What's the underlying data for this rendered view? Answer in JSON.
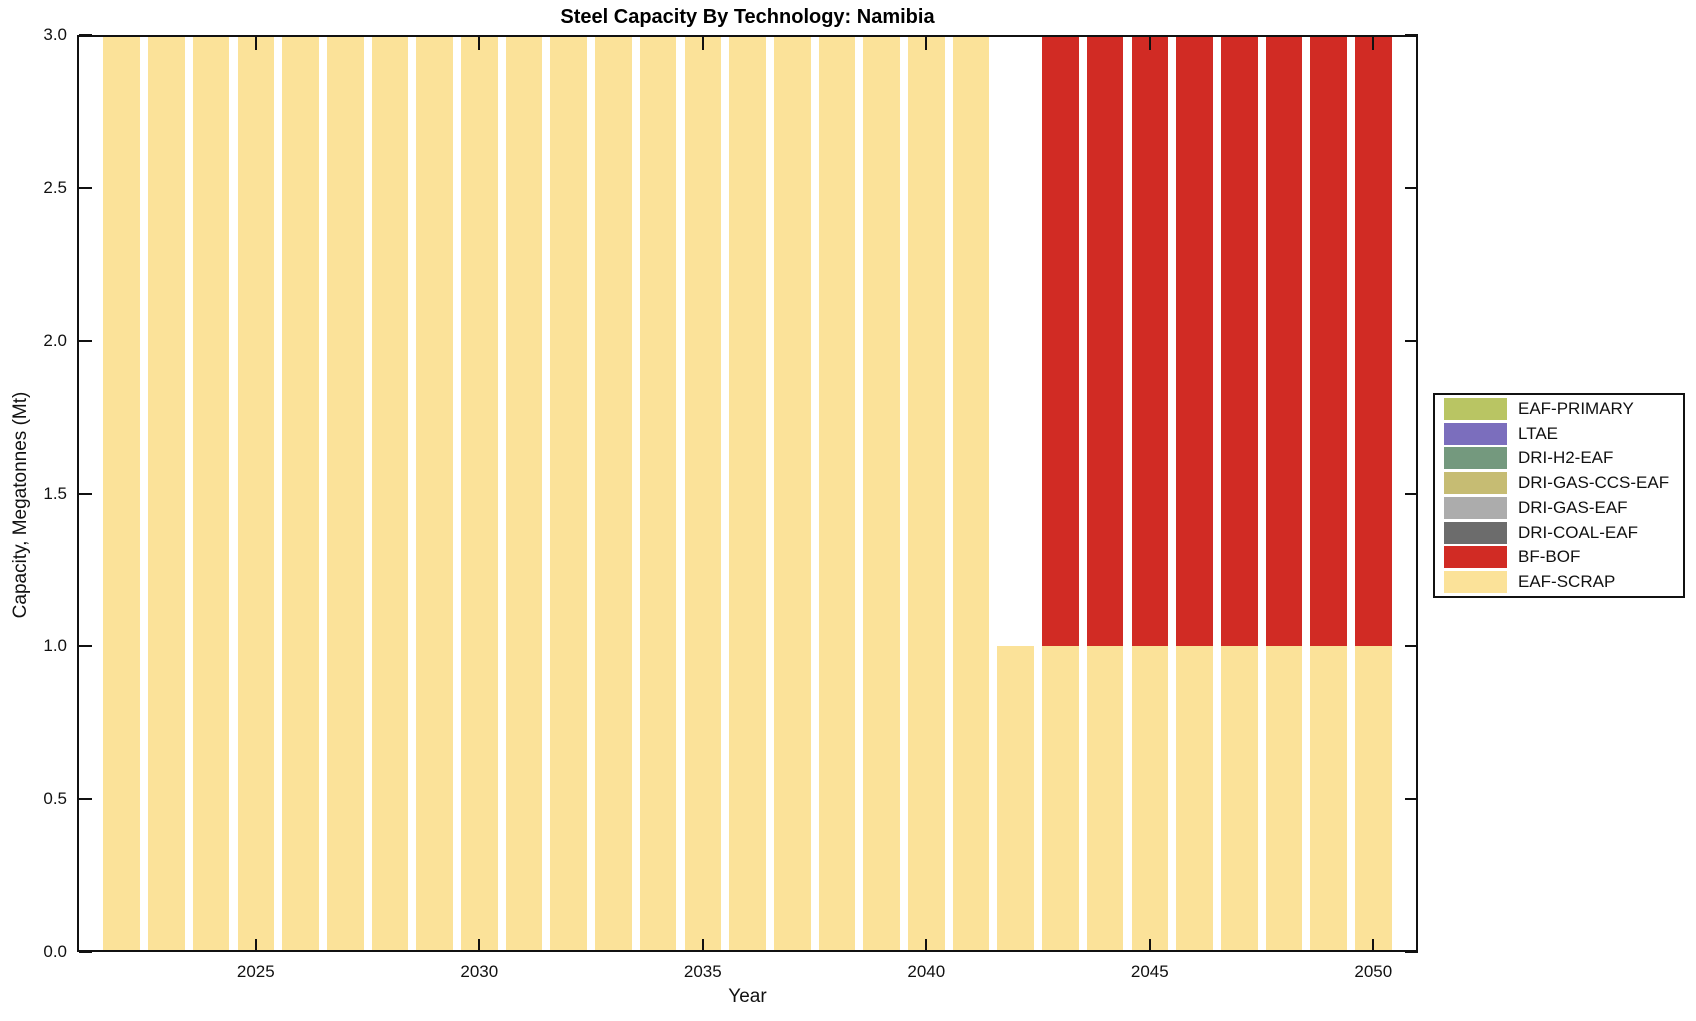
{
  "chart_data": {
    "type": "bar",
    "stacked": true,
    "title": "Steel Capacity By Technology: Namibia",
    "xlabel": "Year",
    "ylabel": "Capacity, Megatonnes (Mt)",
    "xlim": [
      2021,
      2051
    ],
    "ylim": [
      0,
      3
    ],
    "grid": false,
    "legend_position": "outside-right",
    "axis_color": "#111111",
    "background_color": "#FFFFFF",
    "bar_width_years": 0.82,
    "x_ticks": [
      2025,
      2030,
      2035,
      2040,
      2045,
      2050
    ],
    "x_tick_labels": [
      "2025",
      "2030",
      "2035",
      "2040",
      "2045",
      "2050"
    ],
    "y_ticks": [
      0,
      0.5,
      1,
      1.5,
      2,
      2.5,
      3
    ],
    "y_tick_labels": [
      "0.0",
      "0.5",
      "1.0",
      "1.5",
      "2.0",
      "2.5",
      "3.0"
    ],
    "years": [
      2022,
      2023,
      2024,
      2025,
      2026,
      2027,
      2028,
      2029,
      2030,
      2031,
      2032,
      2033,
      2034,
      2035,
      2036,
      2037,
      2038,
      2039,
      2040,
      2041,
      2042,
      2043,
      2044,
      2045,
      2046,
      2047,
      2048,
      2049,
      2050
    ],
    "stack_order": "last-series-at-bottom",
    "series": [
      {
        "name": "EAF-PRIMARY",
        "color": "#B9C563",
        "values": [
          0,
          0,
          0,
          0,
          0,
          0,
          0,
          0,
          0,
          0,
          0,
          0,
          0,
          0,
          0,
          0,
          0,
          0,
          0,
          0,
          0,
          0,
          0,
          0,
          0,
          0,
          0,
          0,
          0
        ]
      },
      {
        "name": "LTAE",
        "color": "#7B6EBD",
        "values": [
          0,
          0,
          0,
          0,
          0,
          0,
          0,
          0,
          0,
          0,
          0,
          0,
          0,
          0,
          0,
          0,
          0,
          0,
          0,
          0,
          0,
          0,
          0,
          0,
          0,
          0,
          0,
          0,
          0
        ]
      },
      {
        "name": "DRI-H2-EAF",
        "color": "#74997E",
        "values": [
          0,
          0,
          0,
          0,
          0,
          0,
          0,
          0,
          0,
          0,
          0,
          0,
          0,
          0,
          0,
          0,
          0,
          0,
          0,
          0,
          0,
          0,
          0,
          0,
          0,
          0,
          0,
          0,
          0
        ]
      },
      {
        "name": "DRI-GAS-CCS-EAF",
        "color": "#C6BC73",
        "values": [
          0,
          0,
          0,
          0,
          0,
          0,
          0,
          0,
          0,
          0,
          0,
          0,
          0,
          0,
          0,
          0,
          0,
          0,
          0,
          0,
          0,
          0,
          0,
          0,
          0,
          0,
          0,
          0,
          0
        ]
      },
      {
        "name": "DRI-GAS-EAF",
        "color": "#ACACAC",
        "values": [
          0,
          0,
          0,
          0,
          0,
          0,
          0,
          0,
          0,
          0,
          0,
          0,
          0,
          0,
          0,
          0,
          0,
          0,
          0,
          0,
          0,
          0,
          0,
          0,
          0,
          0,
          0,
          0,
          0
        ]
      },
      {
        "name": "DRI-COAL-EAF",
        "color": "#6C6C6C",
        "values": [
          0,
          0,
          0,
          0,
          0,
          0,
          0,
          0,
          0,
          0,
          0,
          0,
          0,
          0,
          0,
          0,
          0,
          0,
          0,
          0,
          0,
          0,
          0,
          0,
          0,
          0,
          0,
          0,
          0
        ]
      },
      {
        "name": "BF-BOF",
        "color": "#D12B24",
        "values": [
          0,
          0,
          0,
          0,
          0,
          0,
          0,
          0,
          0,
          0,
          0,
          0,
          0,
          0,
          0,
          0,
          0,
          0,
          0,
          0,
          0,
          2,
          2,
          2,
          2,
          2,
          2,
          2,
          2
        ]
      },
      {
        "name": "EAF-SCRAP",
        "color": "#FBE299",
        "values": [
          3,
          3,
          3,
          3,
          3,
          3,
          3,
          3,
          3,
          3,
          3,
          3,
          3,
          3,
          3,
          3,
          3,
          3,
          3,
          3,
          1,
          1,
          1,
          1,
          1,
          1,
          1,
          1,
          1
        ]
      }
    ]
  }
}
